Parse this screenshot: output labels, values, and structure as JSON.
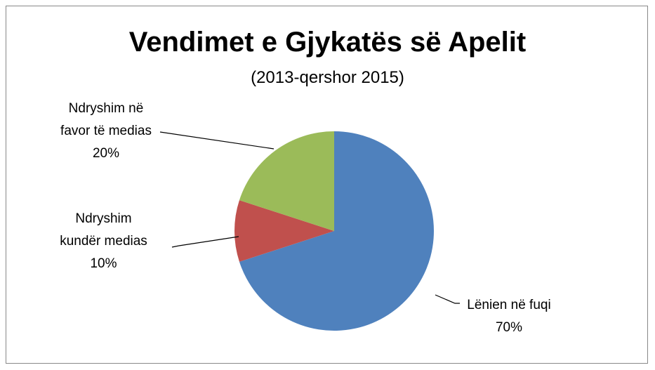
{
  "chart_data": {
    "type": "pie",
    "title": "Vendimet e Gjykatës së Apelit",
    "subtitle": "(2013-qershor 2015)",
    "categories": [
      "Lënien në fuqi",
      "Ndryshim kundër medias",
      "Ndryshim në favor të medias"
    ],
    "values": [
      70,
      10,
      20
    ],
    "value_labels": [
      "70%",
      "10%",
      "20%"
    ],
    "colors": [
      "#4f81bd",
      "#c0504d",
      "#9bbb59"
    ]
  }
}
